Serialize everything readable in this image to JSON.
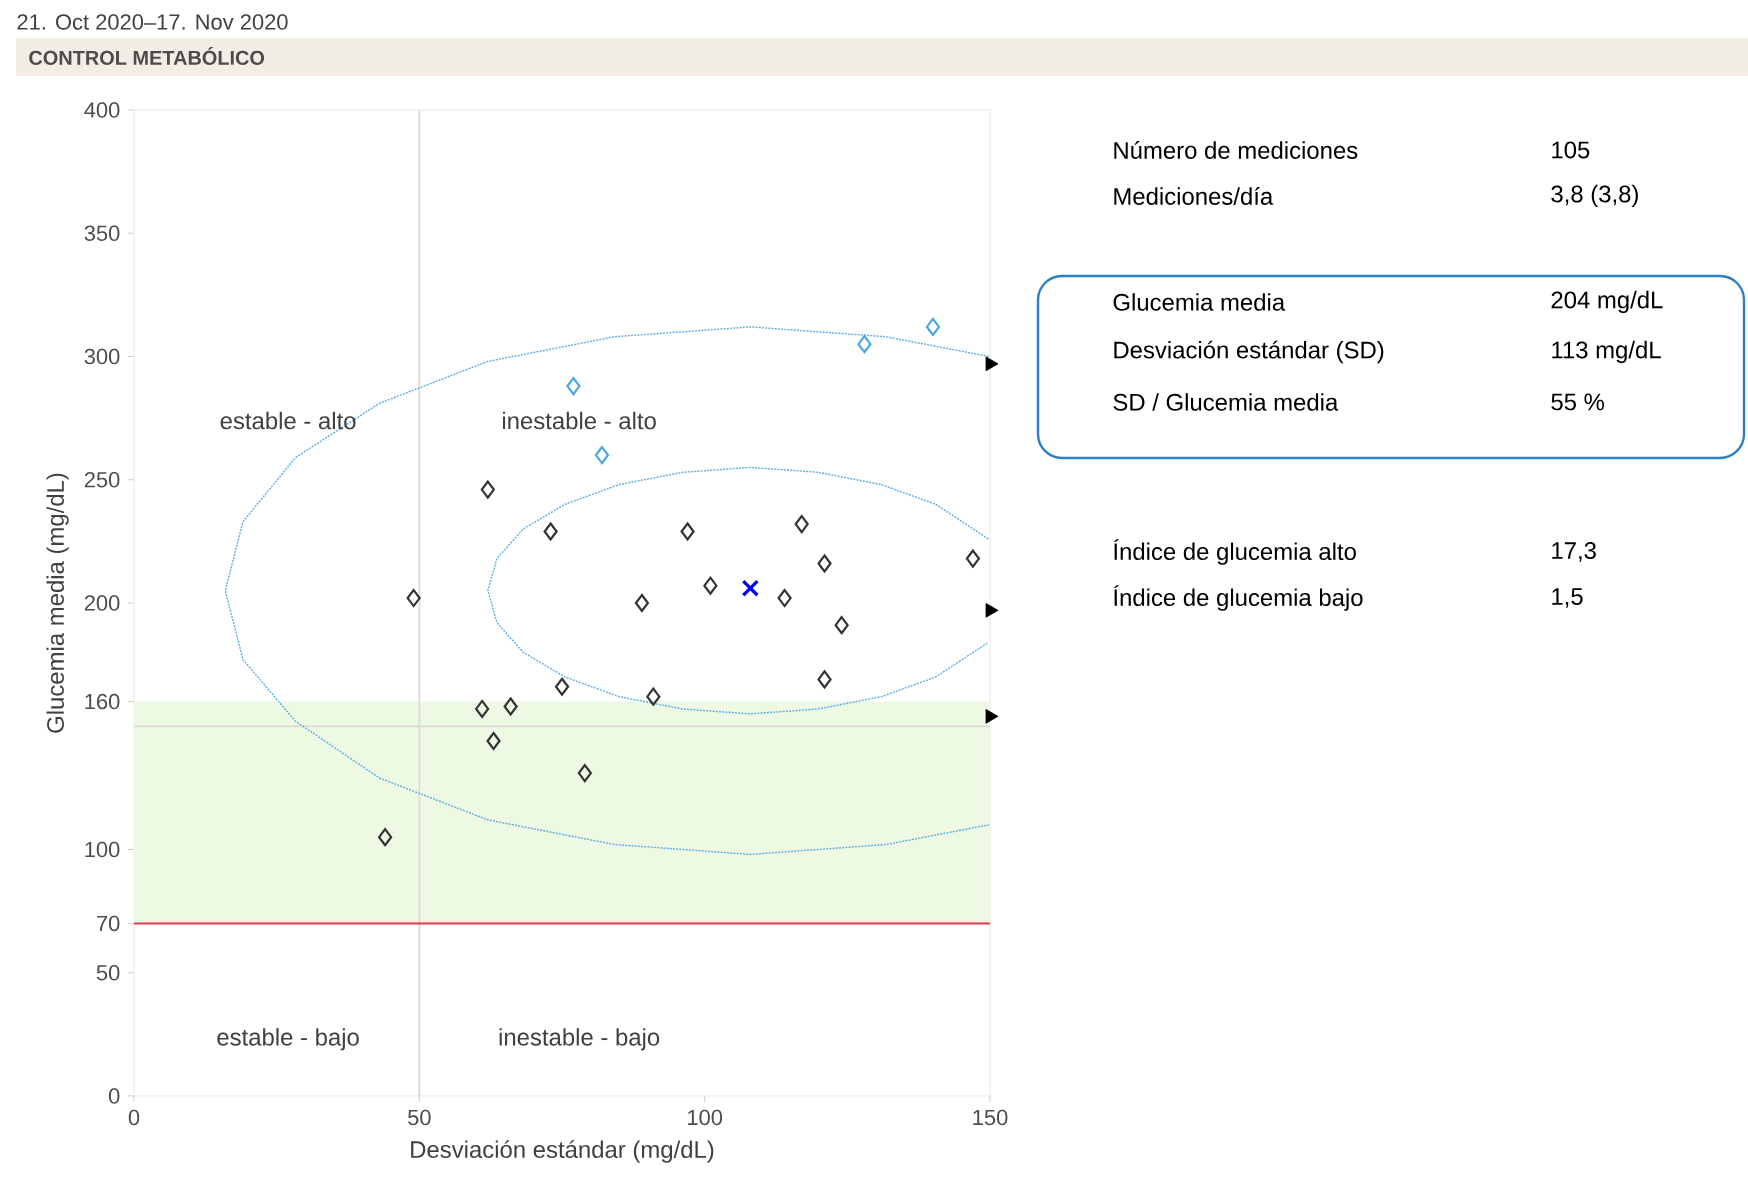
{
  "chart_data": [
    {
      "type": "scatter",
      "title": "CONTROL METABÓLICO",
      "subtitle": "21. Oct 2020–17. Nov 2020",
      "xlabel": "Desviación estándar (mg/dL)",
      "ylabel": "Glucemia media (mg/dL)",
      "xlim": [
        0,
        150
      ],
      "ylim": [
        0,
        400
      ],
      "xticks": [
        0,
        50,
        100,
        150
      ],
      "yticks": [
        0,
        50,
        70,
        100,
        160,
        200,
        250,
        300,
        350,
        400
      ],
      "annotations": [
        "estable - alto",
        "inestable - alto",
        "estable - bajo",
        "inestable - bajo"
      ],
      "ref_lines": [
        {
          "axis": "x",
          "value": 50,
          "color": "#e0dcd5"
        },
        {
          "axis": "y",
          "value": 150,
          "color": "#e0dcd5"
        },
        {
          "axis": "y",
          "value": 70,
          "color": "#e8344e"
        }
      ],
      "bands": [
        {
          "axis": "y",
          "from": 70,
          "to": 160,
          "color": "#eef9e4"
        }
      ],
      "series": [
        {
          "type": "line",
          "color": "#5aaee0",
          "line_style": "dotted",
          "marker": "none",
          "x": [
            149.8,
            131.8,
            108,
            84.2,
            62,
            43,
            28.3,
            19.1,
            16,
            19.1,
            28.3,
            43,
            62,
            84.2,
            108,
            131.8,
            149.8
          ],
          "values": [
            300,
            308,
            312,
            308,
            298,
            281,
            259,
            233,
            205,
            177,
            152,
            129,
            112,
            102,
            98,
            102,
            110
          ]
        },
        {
          "type": "line",
          "color": "#5aaee0",
          "line_style": "dotted",
          "marker": "none",
          "x": [
            149.7,
            140.5,
            131,
            119.9,
            108,
            96.1,
            85,
            75.5,
            68.2,
            63.6,
            62,
            63.6,
            68.2,
            75.5,
            85,
            96.1,
            108,
            119.9,
            131,
            140.5,
            149.7
          ],
          "values": [
            226,
            240,
            248,
            253,
            255,
            253,
            248,
            240,
            230,
            218,
            205,
            192,
            180,
            170,
            162,
            157,
            155,
            157,
            162,
            170,
            184
          ]
        },
        {
          "type": "scatter",
          "color": "#333333",
          "marker": "diamond",
          "x": [
            49,
            62,
            73,
            97,
            117,
            121,
            101,
            89,
            114,
            124,
            147,
            75,
            91,
            121,
            61,
            66,
            63,
            79,
            44
          ],
          "values": [
            202,
            246,
            229,
            229,
            232,
            216,
            207,
            200,
            202,
            191,
            218,
            166,
            162,
            169,
            157,
            158,
            144,
            131,
            105
          ]
        },
        {
          "type": "scatter",
          "color": "#4da6e0",
          "marker": "diamond",
          "x": [
            77,
            82,
            128,
            140
          ],
          "values": [
            288,
            260,
            305,
            312
          ]
        },
        {
          "type": "scatter",
          "color": "#0000ff",
          "marker": "cross",
          "x": [
            108
          ],
          "values": [
            206
          ]
        },
        {
          "type": "scatter",
          "color": "#000000",
          "marker": "triangle",
          "x": [
            150,
            150,
            150
          ],
          "values": [
            297,
            197,
            154
          ]
        }
      ]
    },
    {
      "type": "other",
      "annotations": [
        "Número de mediciones",
        "105",
        "Mediciones/día",
        "3,8 (3,8)",
        "Glucemia media",
        "204 mg/dL",
        "Desviación estándar (SD)",
        "113 mg/dL",
        "SD / Glucemia media",
        "55 %",
        "Índice de glucemia alto",
        "17,3",
        "Índice de glucemia bajo",
        "1,5"
      ]
    }
  ]
}
